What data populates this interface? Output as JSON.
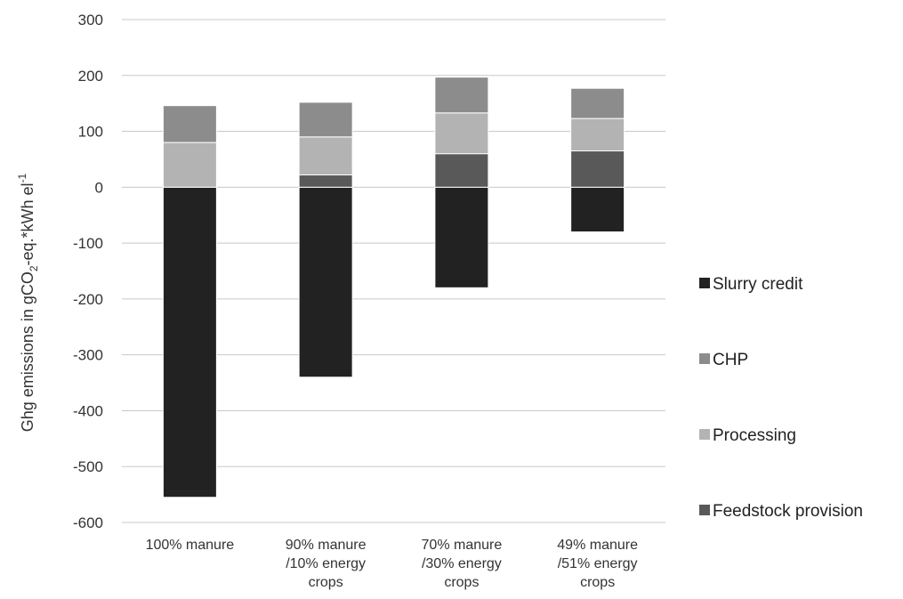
{
  "chart_data": {
    "type": "bar",
    "stacked": true,
    "title": "",
    "xlabel": "",
    "ylabel": {
      "prefix": "Ghg emissions in gCO",
      "sub": "2",
      "middle": "-eq.*kWh el",
      "sup": "-1"
    },
    "ylim": [
      -600,
      300
    ],
    "yticks": [
      300,
      200,
      100,
      0,
      -100,
      -200,
      -300,
      -400,
      -500,
      -600
    ],
    "grid": true,
    "legend_position": "right",
    "categories": [
      [
        "100% manure"
      ],
      [
        "90% manure",
        "/10% energy",
        "crops"
      ],
      [
        "70% manure",
        "/30% energy",
        "crops"
      ],
      [
        "49% manure",
        "/51% energy",
        "crops"
      ]
    ],
    "series": [
      {
        "name": "Slurry credit",
        "color": "#222222",
        "values": [
          -555,
          -340,
          -180,
          -80
        ]
      },
      {
        "name": "Feedstock provision",
        "color": "#595959",
        "values": [
          0,
          22,
          60,
          65
        ]
      },
      {
        "name": "Processing",
        "color": "#b3b3b3",
        "values": [
          80,
          68,
          73,
          58
        ]
      },
      {
        "name": "CHP",
        "color": "#8c8c8c",
        "values": [
          66,
          62,
          64,
          54
        ]
      }
    ],
    "legend_order": [
      "Slurry credit",
      "CHP",
      "Processing",
      "Feedstock provision"
    ]
  }
}
